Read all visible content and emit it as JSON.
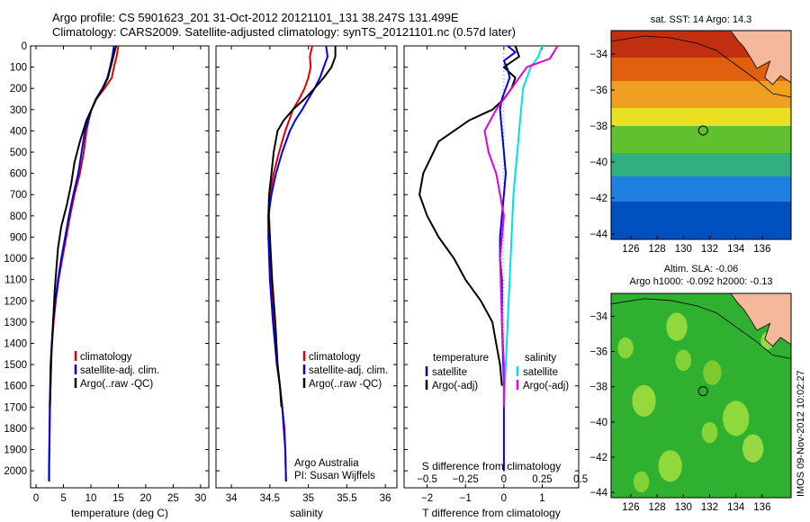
{
  "header": {
    "line1": "Argo profile: CS 5901623_201 31-Oct-2012 20121101_131 38.247S 131.499E",
    "line2": "Climatology: CARS2009. Satellite-adjusted climatology: synTS_20121101.nc (0.57d later)"
  },
  "colors": {
    "climatology": "#e00000",
    "satellite": "#0000e0",
    "argo": "#000000",
    "satellite_salinity": "#00e0e0",
    "argo_adj_salinity": "#e000e0",
    "land": "#f5b89a",
    "dotted_zero": "#00aaaa"
  },
  "profile_axis": {
    "ylim": [
      0,
      2080
    ],
    "yticks": [
      0,
      100,
      200,
      300,
      400,
      500,
      600,
      700,
      800,
      900,
      1000,
      1100,
      1200,
      1300,
      1400,
      1500,
      1600,
      1700,
      1800,
      1900,
      2000
    ],
    "ytick_labels": [
      "0",
      "100",
      "200",
      "300",
      "400",
      "500",
      "600",
      "700",
      "800",
      "900",
      "1000",
      "1100",
      "1200",
      "1300",
      "1400",
      "1500",
      "1600",
      "1700",
      "1800",
      "1900",
      "2000"
    ]
  },
  "chart_data": [
    {
      "type": "line",
      "xlabel": "temperature (deg C)",
      "xlim": [
        -1,
        31.5
      ],
      "xticks": [
        0,
        5,
        10,
        15,
        20,
        25,
        30
      ],
      "xtick_labels": [
        "0",
        "5",
        "10",
        "15",
        "20",
        "25",
        "30"
      ],
      "legend": [
        "climatology",
        "satellite-adj. clim.",
        "Argo(..raw -QC)"
      ],
      "legend_loc": "lower-center",
      "series": [
        {
          "name": "climatology",
          "color": "#e00000",
          "x": [
            15.0,
            14.7,
            14.2,
            13.8,
            12.5,
            11.0,
            10.1,
            9.6,
            9.2,
            8.7,
            8.0,
            7.0,
            6.2,
            5.5,
            4.8,
            4.1,
            3.6,
            3.2,
            2.9,
            2.7,
            2.55,
            2.45,
            2.4,
            2.4
          ],
          "y": [
            0,
            50,
            100,
            150,
            200,
            250,
            300,
            350,
            400,
            500,
            600,
            700,
            800,
            900,
            1000,
            1100,
            1200,
            1300,
            1400,
            1500,
            1700,
            1900,
            2000,
            2050
          ]
        },
        {
          "name": "satellite-adj. clim.",
          "color": "#0000e0",
          "x": [
            14.2,
            13.9,
            13.5,
            13.0,
            12.1,
            10.9,
            10.1,
            9.5,
            8.9,
            8.3,
            7.7,
            6.8,
            6.0,
            5.3,
            4.6,
            4.0,
            3.5,
            3.1,
            2.85,
            2.65,
            2.5,
            2.4,
            2.35,
            2.35
          ],
          "y": [
            0,
            50,
            100,
            150,
            200,
            250,
            300,
            350,
            400,
            500,
            600,
            700,
            800,
            900,
            1000,
            1100,
            1200,
            1300,
            1400,
            1500,
            1700,
            1900,
            2000,
            2050
          ]
        },
        {
          "name": "Argo(..raw -QC)",
          "color": "#000000",
          "x": [
            14.6,
            14.1,
            13.6,
            13.1,
            12.2,
            11.0,
            10.1,
            9.2,
            8.0,
            7.0,
            6.4,
            5.6,
            4.6,
            4.0,
            3.7,
            3.4,
            3.2,
            3.0,
            2.8,
            2.7,
            2.6,
            2.5
          ],
          "y": [
            0,
            50,
            100,
            150,
            200,
            250,
            300,
            350,
            450,
            550,
            650,
            750,
            850,
            950,
            1050,
            1150,
            1250,
            1350,
            1450,
            1550,
            1650,
            1700
          ]
        }
      ]
    },
    {
      "type": "line",
      "xlabel": "salinity",
      "xlim": [
        33.8,
        36.15
      ],
      "xticks": [
        34,
        34.5,
        35,
        35.5,
        36
      ],
      "xtick_labels": [
        "34",
        "34.5",
        "35",
        "35.5",
        "36"
      ],
      "legend": [
        "climatology",
        "satellite-adj. clim.",
        "Argo(..raw -QC)"
      ],
      "legend_loc": "lower-right",
      "annotation": [
        "Argo Australia",
        "PI: Susan Wijffels"
      ],
      "series": [
        {
          "name": "climatology",
          "color": "#e00000",
          "x": [
            35.05,
            35.02,
            35.03,
            35.0,
            34.95,
            34.88,
            34.8,
            34.75,
            34.7,
            34.62,
            34.55,
            34.5,
            34.49,
            34.5,
            34.52,
            34.56,
            34.6,
            34.63,
            34.66,
            34.69,
            34.7,
            34.71
          ],
          "y": [
            0,
            50,
            100,
            150,
            200,
            250,
            300,
            350,
            400,
            500,
            600,
            700,
            800,
            900,
            1100,
            1300,
            1500,
            1600,
            1700,
            1800,
            1900,
            2050
          ]
        },
        {
          "name": "satellite-adj. clim.",
          "color": "#0000e0",
          "x": [
            35.23,
            35.25,
            35.2,
            35.15,
            35.08,
            35.0,
            34.92,
            34.83,
            34.76,
            34.66,
            34.58,
            34.52,
            34.48,
            34.48,
            34.5,
            34.54,
            34.59,
            34.63,
            34.66,
            34.68,
            34.7,
            34.71
          ],
          "y": [
            0,
            50,
            100,
            150,
            200,
            250,
            300,
            350,
            400,
            500,
            600,
            700,
            800,
            900,
            1100,
            1300,
            1500,
            1600,
            1700,
            1800,
            1900,
            2050
          ]
        },
        {
          "name": "Argo(..raw -QC)",
          "color": "#000000",
          "x": [
            35.35,
            35.35,
            35.3,
            35.2,
            35.08,
            34.95,
            34.8,
            34.68,
            34.6,
            34.55,
            34.52,
            34.49,
            34.48,
            34.5,
            34.53,
            34.57,
            34.6,
            34.63,
            34.65
          ],
          "y": [
            0,
            50,
            100,
            150,
            200,
            250,
            300,
            350,
            400,
            500,
            600,
            700,
            800,
            900,
            1100,
            1300,
            1500,
            1600,
            1700
          ]
        }
      ]
    },
    {
      "type": "line",
      "xlabel": "T difference from climatology",
      "toplabel": "S difference from climatology",
      "xlim": [
        -2.6,
        1.95
      ],
      "xticks": [
        -2,
        -1,
        0,
        1
      ],
      "xtick_labels": [
        "−2",
        "−1",
        "0",
        "1"
      ],
      "top_ticks": [
        -0.5,
        -0.25,
        0,
        0.25,
        0.5
      ],
      "top_tick_labels": [
        "−0.5",
        "−0.25",
        "0",
        "0.25",
        "0.5"
      ],
      "top_scale": 4,
      "legend_temperature_title": "temperature",
      "legend_salinity_title": "salinity",
      "legend_temperature": [
        "satellite",
        "Argo(-adj)"
      ],
      "legend_salinity": [
        "satellite",
        "Argo(-adj)"
      ],
      "series": [
        {
          "name": "temperature satellite",
          "color": "#0000e0",
          "x": [
            0.1,
            0.3,
            0.0,
            0.1,
            0.15,
            0.05,
            -0.05,
            -0.1,
            -0.05,
            0.0,
            0.05,
            0.0,
            -0.05,
            -0.1,
            -0.1,
            -0.05,
            -0.05,
            0.0,
            0.0
          ],
          "y": [
            0,
            30,
            70,
            110,
            150,
            200,
            250,
            300,
            400,
            500,
            600,
            700,
            800,
            900,
            1000,
            1100,
            1300,
            1600,
            2000
          ]
        },
        {
          "name": "temperature Argo(-adj)",
          "color": "#000000",
          "x": [
            0.3,
            0.4,
            0.0,
            0.3,
            0.2,
            0.0,
            -0.3,
            -0.9,
            -1.7,
            -2.1,
            -2.2,
            -2.0,
            -1.7,
            -1.3,
            -1.0,
            -0.6,
            -0.3,
            -0.2,
            -0.1,
            -0.05
          ],
          "y": [
            0,
            50,
            100,
            150,
            200,
            250,
            300,
            350,
            450,
            600,
            700,
            800,
            900,
            1000,
            1100,
            1200,
            1300,
            1400,
            1500,
            1600
          ]
        },
        {
          "name": "salinity satellite",
          "color": "#00e0e0",
          "x": [
            1.0,
            0.9,
            0.7,
            0.6,
            0.5,
            0.45,
            0.4,
            0.35,
            0.3,
            0.25,
            0.2,
            0.15,
            0.1,
            0.05,
            0.0
          ],
          "y": [
            0,
            50,
            100,
            150,
            200,
            300,
            400,
            500,
            600,
            700,
            900,
            1100,
            1300,
            1500,
            1700
          ]
        },
        {
          "name": "salinity Argo(-adj)",
          "color": "#e000e0",
          "x": [
            1.4,
            1.2,
            0.6,
            0.2,
            -0.2,
            -0.5,
            -0.4,
            -0.2,
            -0.1,
            0.0,
            -0.1,
            -0.05,
            0.0,
            0.0
          ],
          "y": [
            0,
            60,
            100,
            200,
            300,
            400,
            500,
            600,
            700,
            800,
            1000,
            1300,
            1500,
            1700
          ]
        }
      ]
    },
    {
      "type": "heatmap",
      "title": "sat. SST: 14  Argo: 14.3",
      "xticks": [
        126,
        128,
        130,
        132,
        134,
        136
      ],
      "xtick_labels": [
        "126",
        "128",
        "130",
        "132",
        "134",
        "136"
      ],
      "yticks": [
        -34,
        -36,
        -38,
        -40,
        -42,
        -44
      ],
      "ytick_labels": [
        "−34",
        "−36",
        "−38",
        "−40",
        "−42",
        "−44"
      ],
      "xlim": [
        124.5,
        138.2
      ],
      "ylim": [
        -44.3,
        -32.7
      ],
      "marker": {
        "lon": 131.5,
        "lat": -38.25
      },
      "bands": [
        {
          "lat_from": -32.7,
          "lat_to": -34.2,
          "color": "#c03010"
        },
        {
          "lat_from": -34.2,
          "lat_to": -35.5,
          "color": "#e06010"
        },
        {
          "lat_from": -35.5,
          "lat_to": -37.0,
          "color": "#f0a020"
        },
        {
          "lat_from": -37.0,
          "lat_to": -38.0,
          "color": "#e8e020"
        },
        {
          "lat_from": -38.0,
          "lat_to": -39.5,
          "color": "#60c030"
        },
        {
          "lat_from": -39.5,
          "lat_to": -40.8,
          "color": "#30b080"
        },
        {
          "lat_from": -40.8,
          "lat_to": -42.2,
          "color": "#2080e0"
        },
        {
          "lat_from": -42.2,
          "lat_to": -44.3,
          "color": "#0050c0"
        }
      ]
    },
    {
      "type": "heatmap",
      "title_lines": [
        "Altim. SLA: -0.06",
        "Argo h1000: -0.092 h2000: -0.13"
      ],
      "xticks": [
        126,
        128,
        130,
        132,
        134,
        136
      ],
      "xtick_labels": [
        "126",
        "128",
        "130",
        "132",
        "134",
        "136"
      ],
      "yticks": [
        -34,
        -36,
        -38,
        -40,
        -42,
        -44
      ],
      "ytick_labels": [
        "−34",
        "−36",
        "−38",
        "−40",
        "−42",
        "−44"
      ],
      "xlim": [
        124.5,
        138.2
      ],
      "ylim": [
        -44.3,
        -32.7
      ],
      "marker": {
        "lon": 131.5,
        "lat": -38.25
      },
      "base_color": "#30b030",
      "blobs": [
        {
          "lon": 129.5,
          "lat": -34.6,
          "r": 0.8,
          "color": "#a0e040"
        },
        {
          "lon": 130.0,
          "lat": -36.5,
          "r": 0.6,
          "color": "#90d838"
        },
        {
          "lon": 127.0,
          "lat": -38.8,
          "r": 0.9,
          "color": "#a8e040"
        },
        {
          "lon": 132.2,
          "lat": -37.2,
          "r": 0.7,
          "color": "#88d030"
        },
        {
          "lon": 134.0,
          "lat": -39.8,
          "r": 1.0,
          "color": "#a0e040"
        },
        {
          "lon": 135.3,
          "lat": -41.5,
          "r": 0.8,
          "color": "#a8e048"
        },
        {
          "lon": 132.0,
          "lat": -40.6,
          "r": 0.6,
          "color": "#98dc3c"
        },
        {
          "lon": 129.0,
          "lat": -42.5,
          "r": 0.9,
          "color": "#a0e040"
        },
        {
          "lon": 126.8,
          "lat": -43.4,
          "r": 0.6,
          "color": "#90d838"
        },
        {
          "lon": 136.4,
          "lat": -35.4,
          "r": 0.5,
          "color": "#a8e048"
        },
        {
          "lon": 125.6,
          "lat": -35.8,
          "r": 0.6,
          "color": "#98dc3c"
        }
      ]
    }
  ],
  "side_stamp": "IMOS 09-Nov-2012 10:02:27"
}
